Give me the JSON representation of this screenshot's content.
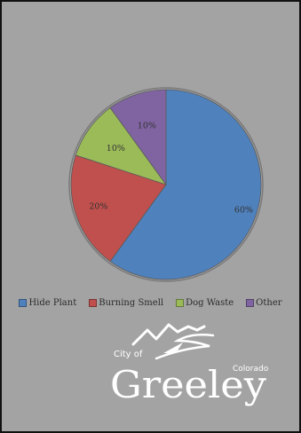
{
  "chart_data": {
    "type": "pie",
    "categories": [
      "Hide Plant",
      "Burning Smell",
      "Dog Waste",
      "Other"
    ],
    "values": [
      60,
      20,
      10,
      10
    ],
    "value_labels": [
      "60%",
      "20%",
      "10%",
      "10%"
    ],
    "colors": [
      "#4f81bd",
      "#c0504d",
      "#9bbb59",
      "#8064a2"
    ],
    "legend_position": "bottom"
  },
  "logo": {
    "city_of": "City of",
    "name": "Greeley",
    "state": "Colorado"
  }
}
